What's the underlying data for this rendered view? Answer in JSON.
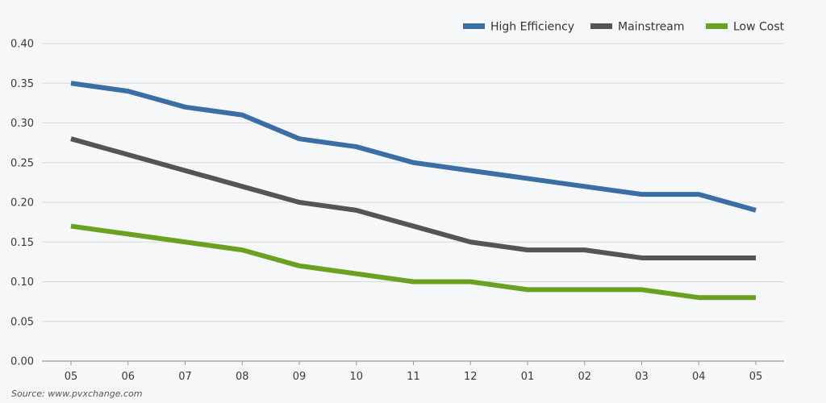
{
  "chart_data": {
    "type": "line",
    "categories": [
      "05",
      "06",
      "07",
      "08",
      "09",
      "10",
      "11",
      "12",
      "01",
      "02",
      "03",
      "04",
      "05"
    ],
    "series": [
      {
        "name": "High Efficiency",
        "color": "#3a6ea5",
        "values": [
          0.35,
          0.34,
          0.32,
          0.31,
          0.28,
          0.27,
          0.25,
          0.24,
          0.23,
          0.22,
          0.21,
          0.21,
          0.19
        ]
      },
      {
        "name": "Mainstream",
        "color": "#555555",
        "values": [
          0.28,
          0.26,
          0.24,
          0.22,
          0.2,
          0.19,
          0.17,
          0.15,
          0.14,
          0.14,
          0.13,
          0.13,
          0.13
        ]
      },
      {
        "name": "Low Cost",
        "color": "#6aa121",
        "values": [
          0.17,
          0.16,
          0.15,
          0.14,
          0.12,
          0.11,
          0.1,
          0.1,
          0.09,
          0.09,
          0.09,
          0.08,
          0.08
        ]
      }
    ],
    "y_ticks": [
      "0.00",
      "0.05",
      "0.10",
      "0.15",
      "0.20",
      "0.25",
      "0.30",
      "0.35",
      "0.40"
    ],
    "ylim": [
      0,
      0.4
    ],
    "grid": true,
    "legend_position": "top-right",
    "source": "Source: www.pvxchange.com"
  }
}
